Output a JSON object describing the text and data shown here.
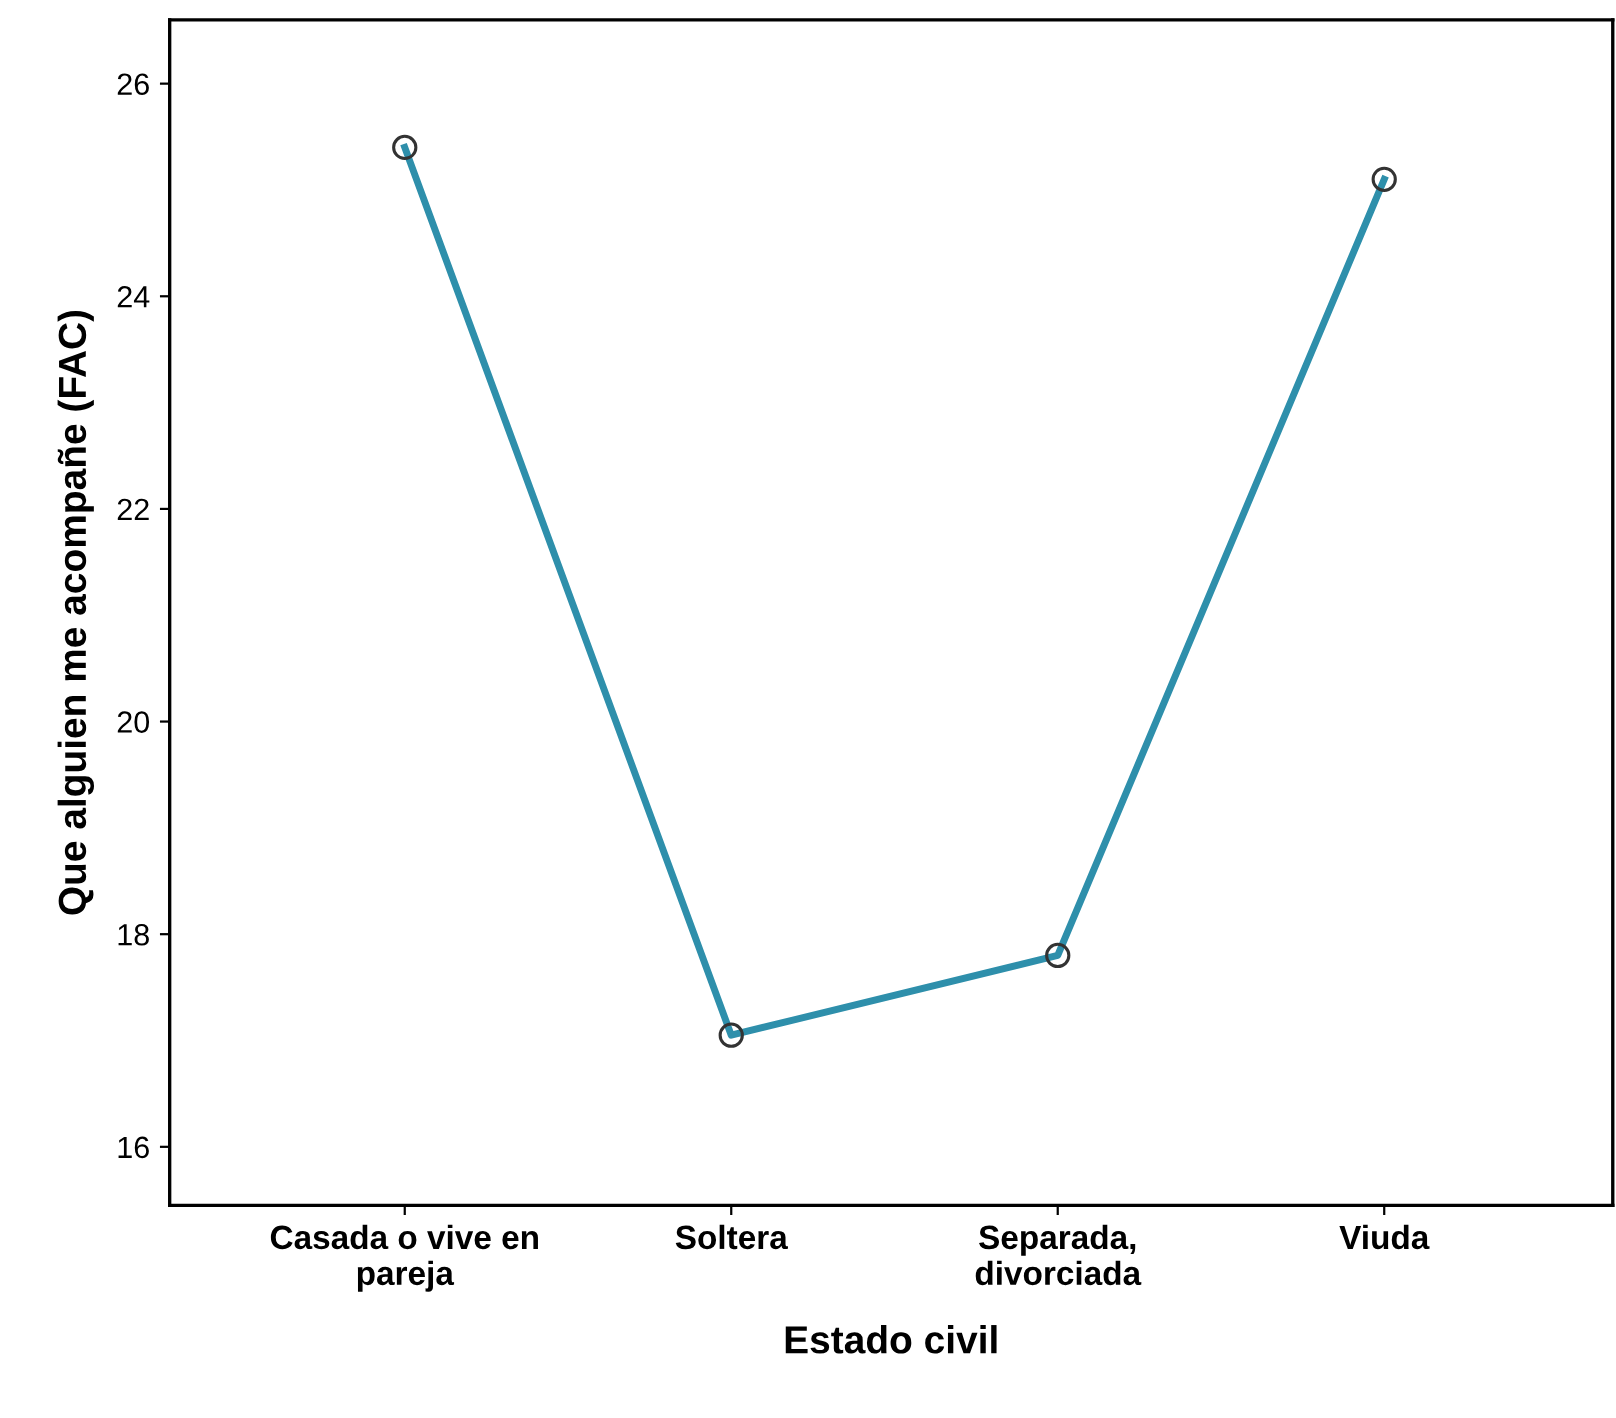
{
  "chart_data": {
    "type": "line",
    "xlabel": "Estado civil",
    "ylabel": "Que alguien me acompañe (FAC)",
    "categories": [
      "Casada o vive en\npareja",
      "Soltera",
      "Separada,\ndivorciada",
      "Viuda"
    ],
    "series": [
      {
        "color": "#2e8fab",
        "values": [
          25.4,
          17.05,
          17.8,
          25.1
        ]
      }
    ],
    "ylim": [
      15.45,
      26.6
    ],
    "yticks": [
      16,
      18,
      20,
      22,
      24,
      26
    ],
    "grid": false,
    "marker": "circle",
    "line_style": "solid"
  }
}
